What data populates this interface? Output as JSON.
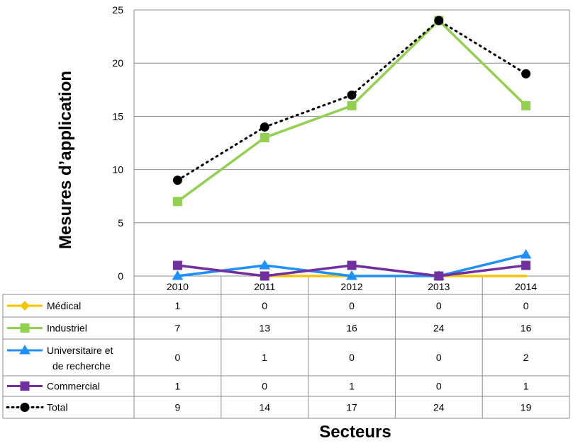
{
  "chart_data": {
    "type": "line",
    "categories": [
      "2010",
      "2011",
      "2012",
      "2013",
      "2014"
    ],
    "ylabel": "Mesures d’application",
    "xlabel": "Secteurs",
    "ylim": [
      0,
      25
    ],
    "yticks": [
      0,
      5,
      10,
      15,
      20,
      25
    ],
    "grid": "horizontal",
    "legend": "data-table",
    "series": [
      {
        "name": "Médical",
        "name_lines": [
          "Médical"
        ],
        "values": [
          1,
          0,
          0,
          0,
          0
        ],
        "color": "#F5C400",
        "marker": "diamond",
        "dash": "solid"
      },
      {
        "name": "Industriel",
        "name_lines": [
          "Industriel"
        ],
        "values": [
          7,
          13,
          16,
          24,
          16
        ],
        "color": "#92D050",
        "marker": "square",
        "dash": "solid"
      },
      {
        "name": "Universitaire et de recherche",
        "name_lines": [
          "Universitaire et",
          "de recherche"
        ],
        "values": [
          0,
          1,
          0,
          0,
          2
        ],
        "color": "#1E90FF",
        "marker": "triangle",
        "dash": "solid"
      },
      {
        "name": "Commercial",
        "name_lines": [
          "Commercial"
        ],
        "values": [
          1,
          0,
          1,
          0,
          1
        ],
        "color": "#7030A0",
        "marker": "square",
        "dash": "solid"
      },
      {
        "name": "Total",
        "name_lines": [
          "Total"
        ],
        "values": [
          9,
          14,
          17,
          24,
          19
        ],
        "color": "#000000",
        "marker": "circle",
        "dash": "dotted"
      }
    ]
  }
}
